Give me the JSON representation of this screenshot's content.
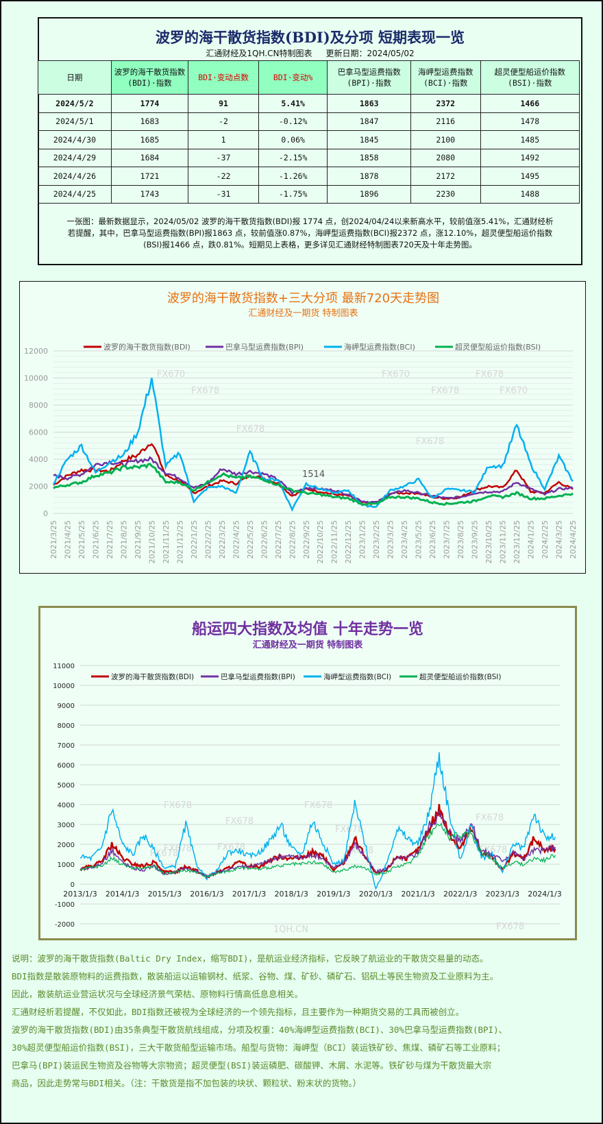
{
  "table": {
    "title": "波罗的海干散货指数(BDI)及分项 短期表现一览",
    "source": "汇通财经及1QH.CN特制图表",
    "updated": "更新日期：2024/05/02",
    "headers": [
      [
        "日期",
        ""
      ],
      [
        "波罗的海干散货指数",
        "(BDI)·指数"
      ],
      [
        "BDI·变动点数",
        ""
      ],
      [
        "BDI·变动%",
        ""
      ],
      [
        "巴拿马型运费指数",
        "(BPI)·指数"
      ],
      [
        "海岬型运费指数",
        "(BCI)·指数"
      ],
      [
        "超灵便型船运价指数",
        "(BSI)·指数"
      ]
    ],
    "rows": [
      [
        "2024/5/2",
        "1774",
        "91",
        "5.41%",
        "1863",
        "2372",
        "1466"
      ],
      [
        "2024/5/1",
        "1683",
        "-2",
        "-0.12%",
        "1847",
        "2116",
        "1478"
      ],
      [
        "2024/4/30",
        "1685",
        "1",
        "0.06%",
        "1845",
        "2100",
        "1485"
      ],
      [
        "2024/4/29",
        "1684",
        "-37",
        "-2.15%",
        "1858",
        "2080",
        "1492"
      ],
      [
        "2024/4/26",
        "1721",
        "-22",
        "-1.26%",
        "1878",
        "2172",
        "1495"
      ],
      [
        "2024/4/25",
        "1743",
        "-31",
        "-1.75%",
        "1896",
        "2230",
        "1488"
      ]
    ],
    "note": [
      "一张图：最新数据显示，2024/05/02 波罗的海干散货指数(BDI)报 1774 点，创2024/04/24以来新高水平，较前值涨5.41%，汇通财经析",
      "若提醒，其中，巴拿马型运费指数(BPI)报1863 点，较前值涨0.87%，海岬型运费指数(BCI)报2372 点，涨12.10%，超灵便型船运价指数",
      "(BSI)报1466 点，跌0.81%。短期见上表格，更多详见汇通财经特制图表720天及十年走势图。"
    ]
  },
  "colors": {
    "BDI": "#c00000",
    "BPI": "#7030a0",
    "BCI": "#00b0f0",
    "BSI": "#00b050"
  },
  "chart_data": [
    {
      "type": "line",
      "title": "波罗的海干散货指数+三大分项  最新720天走势图",
      "subtitle": "汇通财经及一期货  特制图表",
      "ylim": [
        0,
        12000
      ],
      "yticks": [
        0,
        2000,
        4000,
        6000,
        8000,
        10000,
        12000
      ],
      "legend": "top",
      "watermarks": [
        "FX670",
        "FX678",
        "FX678",
        "FX670",
        "FX678",
        "FX678",
        "FX670",
        "FX678",
        "1514"
      ],
      "categories": [
        "2021/3/25",
        "2021/4/25",
        "2021/5/25",
        "2021/6/25",
        "2021/7/25",
        "2021/8/25",
        "2021/9/25",
        "2021/10/25",
        "2021/11/25",
        "2021/12/25",
        "2022/1/25",
        "2022/2/25",
        "2022/3/25",
        "2022/4/25",
        "2022/5/25",
        "2022/6/25",
        "2022/7/25",
        "2022/8/25",
        "2022/9/25",
        "2022/10/25",
        "2022/11/25",
        "2022/12/25",
        "2023/1/25",
        "2023/2/25",
        "2023/3/25",
        "2023/4/25",
        "2023/5/25",
        "2023/6/25",
        "2023/7/25",
        "2023/8/25",
        "2023/9/25",
        "2023/10/25",
        "2023/11/25",
        "2023/12/25",
        "2024/1/25",
        "2024/2/25",
        "2024/3/25",
        "2024/4/25"
      ],
      "series": [
        {
          "key": "BDI",
          "name": "波罗的海干散货指数(BDI)",
          "values": [
            2100,
            2800,
            3200,
            3200,
            3100,
            3900,
            4300,
            5300,
            2800,
            2400,
            1500,
            2000,
            2400,
            2200,
            2800,
            2600,
            2200,
            1300,
            1800,
            1600,
            1400,
            1300,
            800,
            700,
            1500,
            1500,
            1500,
            1200,
            1100,
            1200,
            1700,
            2000,
            1900,
            3200,
            1600,
            1500,
            2300,
            1774
          ]
        },
        {
          "key": "BPI",
          "name": "巴拿马型运费指数(BPI)",
          "values": [
            2800,
            2600,
            2900,
            3600,
            3800,
            3600,
            3900,
            4000,
            3000,
            2600,
            1900,
            2200,
            3300,
            2900,
            3100,
            2900,
            2500,
            1500,
            1900,
            1800,
            1700,
            1400,
            900,
            800,
            1400,
            1700,
            1500,
            1300,
            1100,
            1200,
            1500,
            1600,
            1600,
            2300,
            1800,
            1400,
            1800,
            1863
          ]
        },
        {
          "key": "BCI",
          "name": "海岬型运费指数(BCI)",
          "values": [
            2200,
            4000,
            5000,
            3000,
            3800,
            4300,
            6000,
            10000,
            3500,
            4500,
            900,
            1900,
            2000,
            1500,
            4500,
            2500,
            2500,
            300,
            2200,
            1800,
            1500,
            1700,
            600,
            500,
            1700,
            2000,
            2500,
            1100,
            1800,
            1700,
            1600,
            3500,
            3500,
            6500,
            3600,
            1800,
            4200,
            2372
          ]
        },
        {
          "key": "BSI",
          "name": "超灵便型船运价指数(BSI)",
          "values": [
            1900,
            2100,
            2300,
            2800,
            3000,
            3400,
            3400,
            3600,
            2300,
            2300,
            1700,
            2300,
            2900,
            2600,
            2700,
            2500,
            2100,
            1700,
            1500,
            1400,
            1200,
            1100,
            700,
            700,
            1200,
            1200,
            1100,
            800,
            700,
            800,
            900,
            1300,
            1200,
            1500,
            1100,
            1100,
            1300,
            1466
          ]
        }
      ]
    },
    {
      "type": "line",
      "title": "船运四大指数及均值 十年走势一览",
      "subtitle": "汇通财经及一期货 特制图表",
      "ylim": [
        -2000,
        11000
      ],
      "yticks": [
        -2000,
        -1000,
        0,
        1000,
        2000,
        3000,
        4000,
        5000,
        6000,
        7000,
        8000,
        9000,
        10000,
        11000
      ],
      "legend": "top",
      "watermarks": [
        "FX678",
        "FX678",
        "FX678",
        "FX678",
        "FX678",
        "FX678",
        "FX678",
        "FX678",
        "FX678",
        "FX678",
        "FX678",
        "1QH.CN"
      ],
      "xticks": [
        "2013/1/3",
        "2014/1/3",
        "2015/1/3",
        "2016/1/3",
        "2017/1/3",
        "2018/1/3",
        "2019/1/3",
        "2020/1/3",
        "2021/1/3",
        "2022/1/3",
        "2023/1/3",
        "2024/1/3"
      ],
      "x_start_year": 2013,
      "x_step_years": 0.25,
      "series": [
        {
          "key": "BDI",
          "name": "波罗的海干散货指数(BDI)",
          "values": [
            750,
            900,
            1100,
            2000,
            1300,
            1000,
            900,
            1100,
            600,
            600,
            900,
            700,
            350,
            600,
            800,
            1100,
            900,
            900,
            1200,
            1400,
            1300,
            1300,
            1600,
            1400,
            700,
            1100,
            2300,
            1400,
            500,
            700,
            1400,
            1300,
            1700,
            2700,
            3800,
            2500,
            1800,
            2800,
            1600,
            1400,
            700,
            1500,
            1300,
            2300,
            1700,
            1774
          ]
        },
        {
          "key": "BPI",
          "name": "巴拿马型运费指数(BPI)",
          "values": [
            700,
            850,
            1000,
            1700,
            1100,
            800,
            700,
            900,
            500,
            600,
            800,
            650,
            400,
            600,
            700,
            900,
            900,
            1000,
            1200,
            1400,
            1400,
            1300,
            1500,
            1300,
            800,
            1100,
            2000,
            1400,
            600,
            800,
            1300,
            1300,
            1600,
            2900,
            3500,
            2600,
            2200,
            3100,
            1700,
            1500,
            1200,
            1600,
            1300,
            1700,
            1700,
            1863
          ]
        },
        {
          "key": "BCI",
          "name": "海岬型运费指数(BCI)",
          "values": [
            1400,
            1300,
            1800,
            3800,
            2000,
            1500,
            2500,
            1700,
            800,
            900,
            3000,
            1000,
            300,
            700,
            1600,
            1700,
            1400,
            1600,
            2200,
            3000,
            1800,
            1500,
            3200,
            2100,
            1000,
            1200,
            4000,
            2000,
            -300,
            1000,
            2800,
            2300,
            2000,
            3500,
            6500,
            3400,
            1200,
            3000,
            1300,
            1500,
            600,
            2000,
            1800,
            3600,
            2300,
            2372
          ]
        },
        {
          "key": "BSI",
          "name": "超灵便型船运价指数(BSI)",
          "values": [
            700,
            850,
            900,
            1300,
            1000,
            800,
            800,
            900,
            500,
            600,
            700,
            600,
            400,
            550,
            650,
            800,
            800,
            750,
            850,
            900,
            1000,
            1000,
            1100,
            1000,
            600,
            700,
            900,
            800,
            500,
            600,
            900,
            1000,
            1500,
            2500,
            3000,
            2400,
            2400,
            2600,
            1600,
            1300,
            800,
            1100,
            1000,
            1300,
            1200,
            1466
          ]
        }
      ]
    }
  ],
  "explanation": [
    "说明：波罗的海干散货指数(Baltic Dry Index，缩写BDI)，是航运业经济指标，它反映了航运业的干散货交易量的动态。",
    "BDI指数是散装原物料的运费指数，散装船运以运输钢材、纸浆、谷物、煤、矿砂、磷矿石、铝矾土等民生物资及工业原料为主。",
    "因此，散装航运业营运状况与全球经济景气荣枯、原物料行情高低息息相关。",
    "汇通财经析若提醒，不仅如此，BDI指数还被视为全球经济的一个领先指标，且主要作为一种期货交易的工具而被创立。",
    "波罗的海干散货指数(BDI)由35条典型干散货航线组成，分项及权重：40%海岬型运费指数(BCI)、30%巴拿马型运费指数(BPI)、",
    "30%超灵便型船运价指数(BSI)，三大干散货船型运输市场。船型与货物：海岬型（BCI）装运铁矿砂、焦煤、磷矿石等工业原料；",
    "巴拿马(BPI)装运民生物资及谷物等大宗物资；超灵便型(BSI)装运磷肥、碳酸钾、木屑、水泥等。铁矿砂与煤为干散货最大宗",
    "商品，因此走势常与BDI相关。（注：干散货是指不加包装的块状、颗粒状、粉末状的货物。）"
  ]
}
